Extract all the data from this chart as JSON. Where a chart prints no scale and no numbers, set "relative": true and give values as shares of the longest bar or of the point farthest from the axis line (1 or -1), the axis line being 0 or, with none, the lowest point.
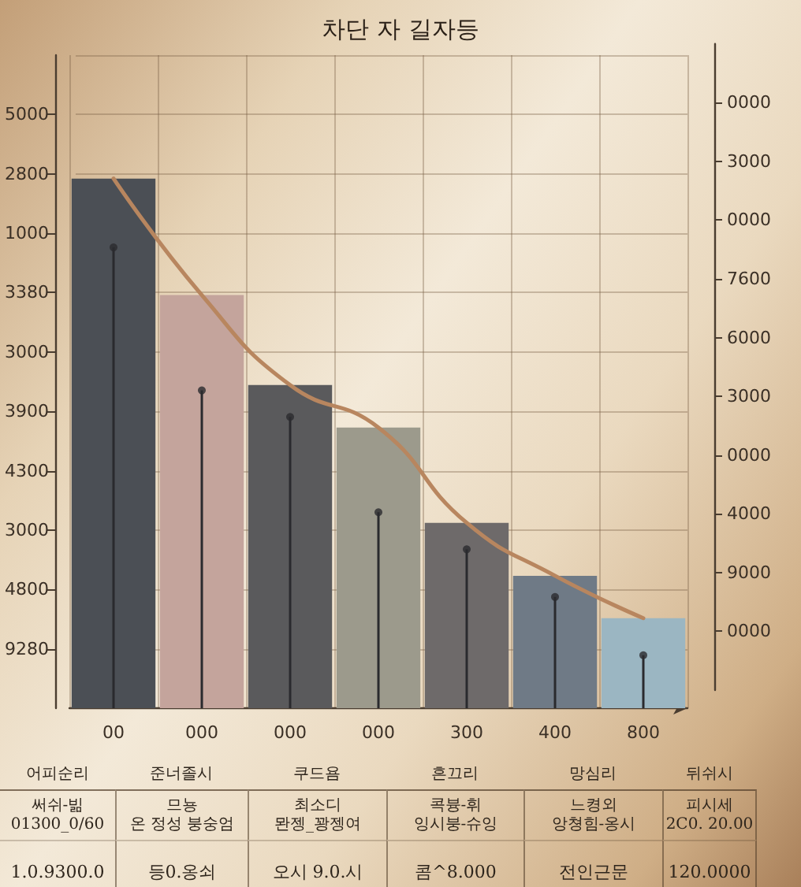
{
  "chart_data": [
    {
      "type": "bar",
      "title": "차단 자 길자등",
      "categories": [
        "00",
        "000",
        "000",
        "000",
        "300",
        "400",
        "800"
      ],
      "relative": true,
      "series": [
        {
          "type": "bar",
          "colors": [
            "#4b4f55",
            "#c4a49c",
            "#5a5a5c",
            "#9c9a8c",
            "#6e6a6a",
            "#6f7a86",
            "#9bb6c2"
          ],
          "values": [
            1,
            0.78,
            0.61,
            0.53,
            0.35,
            0.25,
            0.17
          ]
        },
        {
          "type": "line",
          "color": "#b8865f",
          "values": [
            1,
            0.78,
            0.61,
            0.53,
            0.35,
            0.25,
            0.17
          ]
        },
        {
          "type": "lollipop",
          "color": "#2a2a2e",
          "marker": "circle",
          "values": [
            0.87,
            0.6,
            0.55,
            0.37,
            0.3,
            0.21,
            0.1
          ]
        }
      ],
      "y_categories": [
        null,
        "5000",
        "2800",
        "1000",
        "3380",
        "3000",
        "3900",
        "4300",
        "3000",
        "4800",
        "9280",
        null
      ],
      "y2_categories": [
        null,
        "0000",
        "3000",
        "0000",
        "7600",
        "6000",
        "3000",
        "0000",
        "4000",
        "9000",
        "0000",
        null
      ],
      "grid": true,
      "marker": "none"
    },
    {
      "type": "other",
      "annotations": [
        "어피순리",
        "준너졸시",
        "쿠드욤",
        "흔끄리",
        "망심리",
        "뒤쉬시",
        "써쉬-빎\n01300_0/60",
        "므뇽\n온 정성 붕숭엄",
        "최소디\n뫈젱_꽝젱여",
        "콕븅-휘\n잉시붕-슈잉",
        "느켱외\n앙쳥힘-옹시",
        "피시세\n2C0. 20.00",
        "1.0.9300.0",
        "등0.옹쇠",
        "오시 9.0.시",
        "콤^8.000",
        "전인근문",
        "120.0000"
      ]
    }
  ]
}
